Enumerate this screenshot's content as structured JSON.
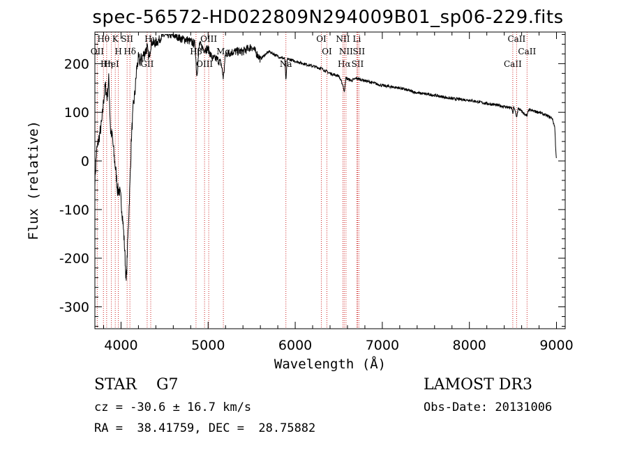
{
  "chart_data": {
    "type": "line",
    "title": "spec-56572-HD022809N294009B01_sp06-229.fits",
    "xlabel": "Wavelength (Å)",
    "ylabel": "Flux (relative)",
    "xlim": [
      3700,
      9100
    ],
    "ylim": [
      -345,
      265
    ],
    "x_ticks": [
      4000,
      5000,
      6000,
      7000,
      8000,
      9000
    ],
    "y_ticks": [
      -300,
      -200,
      -100,
      0,
      100,
      200
    ],
    "spectral_lines": [
      {
        "label": "Hθ",
        "wavelength": 3798
      },
      {
        "label": "OII",
        "wavelength": 3727
      },
      {
        "label": "Hη",
        "wavelength": 3835
      },
      {
        "label": "K",
        "wavelength": 3934
      },
      {
        "label": "H",
        "wavelength": 3969
      },
      {
        "label": "HeI",
        "wavelength": 3889
      },
      {
        "label": "SII",
        "wavelength": 4070
      },
      {
        "label": "Hδ",
        "wavelength": 4102
      },
      {
        "label": "GII",
        "wavelength": 4300
      },
      {
        "label": "Hγ",
        "wavelength": 4341
      },
      {
        "label": "Hβ",
        "wavelength": 4861
      },
      {
        "label": "OIII",
        "wavelength": 4959
      },
      {
        "label": "OIII",
        "wavelength": 5007
      },
      {
        "label": "Mg",
        "wavelength": 5175
      },
      {
        "label": "Na",
        "wavelength": 5893
      },
      {
        "label": "OI",
        "wavelength": 6300
      },
      {
        "label": "OI",
        "wavelength": 6364
      },
      {
        "label": "Hα",
        "wavelength": 6563
      },
      {
        "label": "NII",
        "wavelength": 6548
      },
      {
        "label": "NII",
        "wavelength": 6583
      },
      {
        "label": "SII",
        "wavelength": 6716
      },
      {
        "label": "Li",
        "wavelength": 6708
      },
      {
        "label": "SII",
        "wavelength": 6731
      },
      {
        "label": "CaII",
        "wavelength": 8498
      },
      {
        "label": "CaII",
        "wavelength": 8542
      },
      {
        "label": "CaII",
        "wavelength": 8662
      }
    ],
    "series": [
      {
        "name": "flux",
        "x": [
          3700,
          3720,
          3740,
          3760,
          3780,
          3800,
          3820,
          3840,
          3860,
          3880,
          3900,
          3920,
          3940,
          3960,
          3980,
          4000,
          4020,
          4040,
          4060,
          4080,
          4100,
          4120,
          4140,
          4160,
          4180,
          4200,
          4220,
          4250,
          4280,
          4300,
          4320,
          4350,
          4380,
          4420,
          4460,
          4500,
          4550,
          4600,
          4650,
          4700,
          4750,
          4800,
          4850,
          4870,
          4900,
          4950,
          5000,
          5050,
          5100,
          5150,
          5175,
          5200,
          5300,
          5400,
          5500,
          5600,
          5700,
          5800,
          5880,
          5893,
          5910,
          6000,
          6100,
          6200,
          6300,
          6400,
          6500,
          6550,
          6563,
          6580,
          6650,
          6700,
          6800,
          6900,
          7000,
          7200,
          7400,
          7600,
          7800,
          8000,
          8200,
          8400,
          8490,
          8498,
          8510,
          8542,
          8560,
          8662,
          8680,
          8800,
          8900,
          8950,
          8980,
          8990,
          9000
        ],
        "values": [
          -40,
          20,
          40,
          60,
          80,
          125,
          155,
          130,
          170,
          60,
          50,
          10,
          -20,
          -60,
          -60,
          -80,
          -120,
          -175,
          -250,
          -150,
          -60,
          50,
          110,
          140,
          190,
          210,
          205,
          215,
          225,
          235,
          210,
          245,
          240,
          245,
          255,
          258,
          260,
          258,
          256,
          250,
          250,
          245,
          240,
          175,
          240,
          230,
          230,
          210,
          210,
          200,
          170,
          220,
          225,
          225,
          235,
          210,
          225,
          215,
          210,
          165,
          210,
          205,
          200,
          195,
          190,
          180,
          175,
          155,
          140,
          170,
          165,
          170,
          165,
          160,
          155,
          150,
          140,
          135,
          128,
          125,
          118,
          112,
          108,
          95,
          112,
          90,
          108,
          92,
          105,
          100,
          92,
          88,
          70,
          30,
          0
        ]
      }
    ]
  },
  "info": {
    "class_text": "STAR    G7",
    "survey": "LAMOST DR3",
    "cz": "cz = -30.6 ± 16.7 km/s",
    "obs_date": "Obs-Date: 20131006",
    "coords": "RA =  38.41759, DEC =  28.75882"
  }
}
